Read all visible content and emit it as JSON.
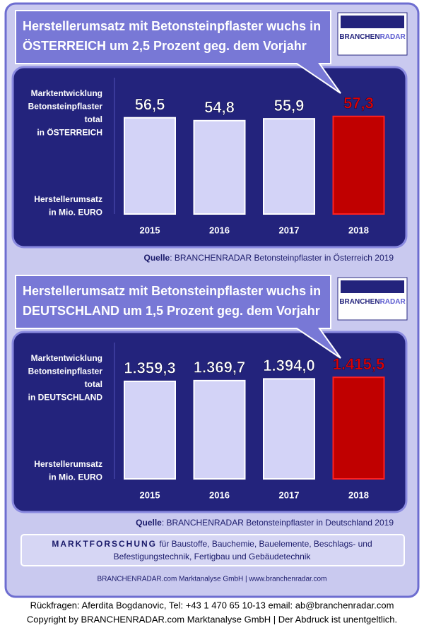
{
  "chart_data": [
    {
      "type": "bar",
      "title": [
        "Herstellerumsatz mit  Betonsteinpflaster  wuchs in",
        "ÖSTERREICH um 2,5 Prozent geg. dem Vorjahr"
      ],
      "logo": [
        "BRANCHEN",
        "RADAR"
      ],
      "side_label_top": [
        "Marktentwicklung",
        "Betonsteinpflaster",
        "total",
        "in ÖSTERREICH"
      ],
      "side_label_bottom": [
        "Herstellerumsatz",
        "in Mio. EURO"
      ],
      "categories": [
        "2015",
        "2016",
        "2017",
        "2018"
      ],
      "values": [
        56.5,
        54.8,
        55.9,
        57.3
      ],
      "value_labels": [
        "56,5",
        "54,8",
        "55,9",
        "57,3"
      ],
      "colors": [
        "#d3d3f7",
        "#d3d3f7",
        "#d3d3f7",
        "#c00000"
      ],
      "label_colors": [
        "#ffffff",
        "#ffffff",
        "#ffffff",
        "#e00000"
      ],
      "ylim": [
        0,
        80
      ],
      "source": {
        "label": "Quelle",
        "text": ": BRANCHENRADAR Betonsteinpflaster in Österreich 2019"
      }
    },
    {
      "type": "bar",
      "title": [
        "Herstellerumsatz mit  Betonsteinpflaster  wuchs in",
        "DEUTSCHLAND um 1,5 Prozent geg. dem Vorjahr"
      ],
      "logo": [
        "BRANCHEN",
        "RADAR"
      ],
      "side_label_top": [
        "Marktentwicklung",
        "Betonsteinpflaster",
        "total",
        "in DEUTSCHLAND"
      ],
      "side_label_bottom": [
        "Herstellerumsatz",
        "in Mio. EURO"
      ],
      "categories": [
        "2015",
        "2016",
        "2017",
        "2018"
      ],
      "values": [
        1359.3,
        1369.7,
        1394.0,
        1415.5
      ],
      "value_labels": [
        "1.359,3",
        "1.369,7",
        "1.394,0",
        "1.415,5"
      ],
      "colors": [
        "#d3d3f7",
        "#d3d3f7",
        "#d3d3f7",
        "#c00000"
      ],
      "label_colors": [
        "#ffffff",
        "#ffffff",
        "#ffffff",
        "#e00000"
      ],
      "ylim": [
        0,
        1900
      ],
      "source": {
        "label": "Quelle",
        "text": ": BRANCHENRADAR Betonsteinpflaster in Deutschland 2019"
      }
    }
  ],
  "footer": {
    "heading": "MARKTFORSCHUNG",
    "line1": " für Baustoffe, Bauchemie, Bauelemente, Beschlags- und",
    "line2": "Befestigungstechnik, Fertigbau und Gebäudetechnik",
    "company": "BRANCHENRADAR.com Marktanalyse GmbH | www.branchenradar.com"
  },
  "contact": "Rückfragen: Aferdita Bogdanovic, Tel: +43 1 470 65 10-13 email: ab@branchenradar.com",
  "copyright": "Copyright by BRANCHENRADAR.com  Marktanalyse GmbH | Der Abdruck ist unentgeltlich."
}
